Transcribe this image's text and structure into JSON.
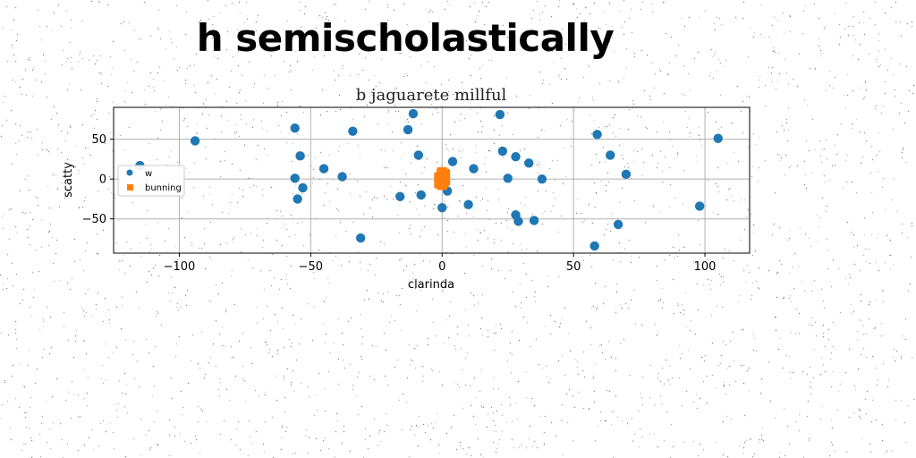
{
  "page": {
    "title": "h semischolastically"
  },
  "chart_data": {
    "type": "scatter",
    "title": "b jaguarete millful",
    "xlabel": "clarinda",
    "ylabel": "scatty",
    "xlim": [
      -125,
      117
    ],
    "ylim": [
      -93,
      90
    ],
    "xticks": [
      -100,
      -50,
      0,
      50,
      100
    ],
    "yticks": [
      -50,
      0,
      50
    ],
    "grid": true,
    "legend": {
      "position": "left",
      "entries": [
        "w",
        "bunning"
      ]
    },
    "series": [
      {
        "name": "w",
        "marker": "circle",
        "color": "#1f77b4",
        "points": [
          [
            -115,
            17
          ],
          [
            -94,
            48
          ],
          [
            -56,
            64
          ],
          [
            -56,
            1
          ],
          [
            -54,
            29
          ],
          [
            -53,
            -11
          ],
          [
            -55,
            -25
          ],
          [
            -45,
            13
          ],
          [
            -38,
            3
          ],
          [
            -34,
            60
          ],
          [
            -31,
            -74
          ],
          [
            -16,
            -22
          ],
          [
            -13,
            62
          ],
          [
            -11,
            82
          ],
          [
            -9,
            30
          ],
          [
            -8,
            -20
          ],
          [
            0,
            -36
          ],
          [
            2,
            -15
          ],
          [
            4,
            22
          ],
          [
            10,
            -32
          ],
          [
            12,
            13
          ],
          [
            22,
            81
          ],
          [
            23,
            35
          ],
          [
            25,
            1
          ],
          [
            28,
            -45
          ],
          [
            28,
            28
          ],
          [
            29,
            -53
          ],
          [
            33,
            20
          ],
          [
            35,
            -52
          ],
          [
            38,
            0
          ],
          [
            58,
            -84
          ],
          [
            59,
            56
          ],
          [
            64,
            30
          ],
          [
            67,
            -57
          ],
          [
            70,
            6
          ],
          [
            98,
            -34
          ],
          [
            105,
            51
          ]
        ]
      },
      {
        "name": "bunning",
        "marker": "square",
        "color": "#ff7f0e",
        "points": [
          [
            0,
            8
          ],
          [
            0,
            4
          ],
          [
            0,
            0
          ],
          [
            0,
            -4
          ],
          [
            0,
            -7
          ],
          [
            1,
            6
          ],
          [
            1,
            -2
          ],
          [
            -1,
            2
          ],
          [
            -1,
            -5
          ]
        ]
      }
    ]
  }
}
